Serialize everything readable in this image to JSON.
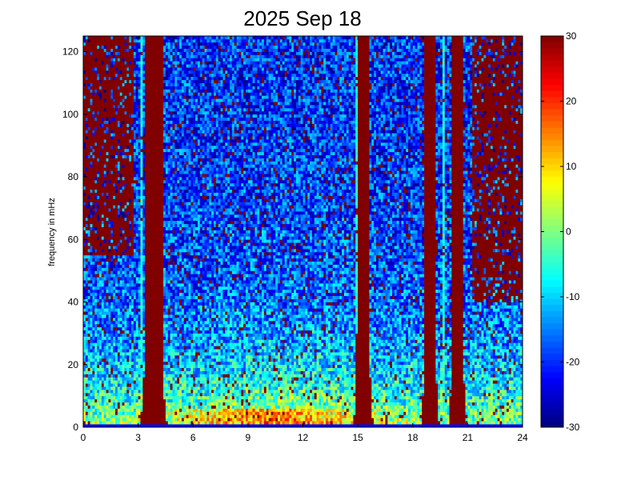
{
  "chart_data": {
    "type": "heatmap",
    "title": "2025 Sep 18",
    "xlabel": "",
    "ylabel": "frequency in mHz",
    "xlim": [
      0,
      24
    ],
    "ylim": [
      0,
      125
    ],
    "x_ticks": [
      "0",
      "3",
      "6",
      "9",
      "12",
      "15",
      "18",
      "21",
      "24"
    ],
    "y_ticks": [
      "0",
      "20",
      "40",
      "60",
      "80",
      "100",
      "120"
    ],
    "colorbar": {
      "range": [
        -30,
        30
      ],
      "ticks": [
        "30",
        "20",
        "10",
        "0",
        "-10",
        "-20",
        "-30"
      ],
      "colormap": "jet"
    },
    "grid": false,
    "time_bins": 192,
    "freq_bins": 125,
    "saturated_bands_hours": [
      {
        "start": 2.95,
        "end": 4.75
      },
      {
        "start": 14.65,
        "end": 15.95
      },
      {
        "start": 18.35,
        "end": 19.55
      },
      {
        "start": 19.85,
        "end": 21.05
      }
    ],
    "thin_bands_hours": [
      3.15,
      4.3,
      14.9,
      19.7
    ],
    "saturated_corner_regions": [
      {
        "x_from": 0,
        "x_to": 2.8,
        "freq_above_mHz": 55
      },
      {
        "x_from": 21.2,
        "x_to": 24,
        "freq_above_mHz": 40
      }
    ]
  }
}
